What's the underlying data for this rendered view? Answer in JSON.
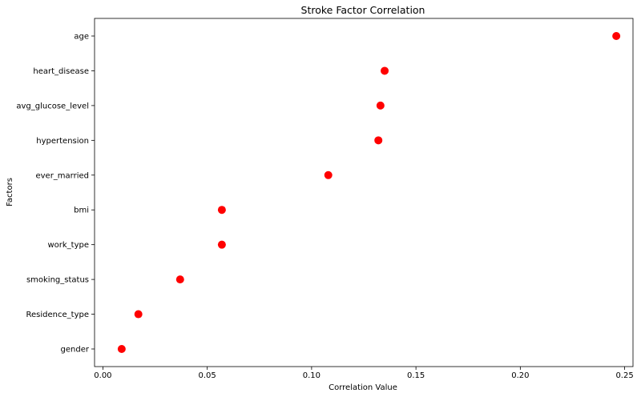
{
  "chart_data": {
    "type": "scatter",
    "title": "Stroke Factor Correlation",
    "xlabel": "Correlation Value",
    "ylabel": "Factors",
    "xlim": [
      -0.004,
      0.254
    ],
    "xticks": [
      0.0,
      0.05,
      0.1,
      0.15,
      0.2,
      0.25
    ],
    "xtick_labels": [
      "0.00",
      "0.05",
      "0.10",
      "0.15",
      "0.20",
      "0.25"
    ],
    "grid": false,
    "marker_color": "#ff0000",
    "categories": [
      "age",
      "heart_disease",
      "avg_glucose_level",
      "hypertension",
      "ever_married",
      "bmi",
      "work_type",
      "smoking_status",
      "Residence_type",
      "gender"
    ],
    "values": [
      0.246,
      0.135,
      0.133,
      0.132,
      0.108,
      0.057,
      0.057,
      0.037,
      0.017,
      0.009
    ]
  }
}
